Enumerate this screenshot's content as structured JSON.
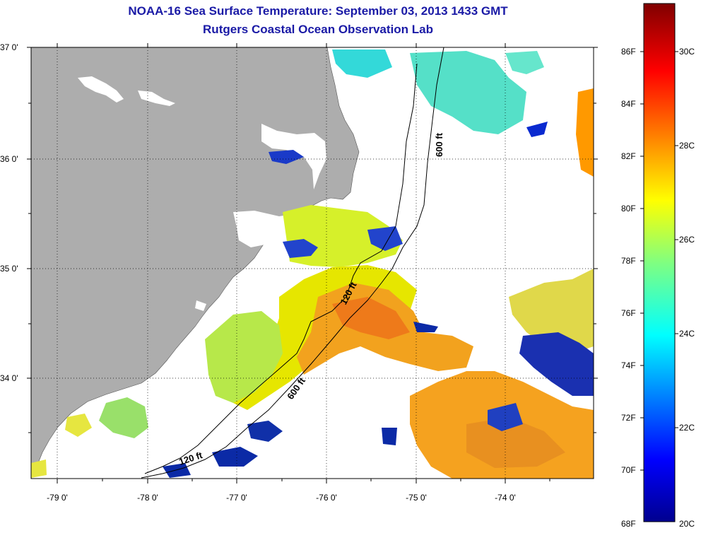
{
  "title": "NOAA-16 Sea Surface Temperature:  September 03, 2013 1433 GMT",
  "subtitle": "Rutgers Coastal Ocean Observation Lab",
  "axes": {
    "lon_ticks": [
      "-79 0'",
      "-78 0'",
      "-77 0'",
      "-76 0'",
      "-75 0'",
      "-74 0'"
    ],
    "lat_ticks": [
      "37 0'",
      "36 0'",
      "35 0'",
      "34 0'"
    ]
  },
  "contour_labels": {
    "c600_north": "600 ft",
    "c120_mid": "120 ft",
    "c600_south": "600 ft",
    "c120_south": "120 ft"
  },
  "colorbar": {
    "fahrenheit": [
      "86F",
      "84F",
      "82F",
      "80F",
      "78F",
      "76F",
      "74F",
      "72F",
      "70F",
      "68F"
    ],
    "celsius": [
      "30C",
      "28C",
      "26C",
      "24C",
      "22C",
      "20C"
    ]
  },
  "colors": {
    "land": "#adadad",
    "title": "#1a1aa6",
    "sst_cold": "#000080",
    "sst_warm": "#800000"
  }
}
